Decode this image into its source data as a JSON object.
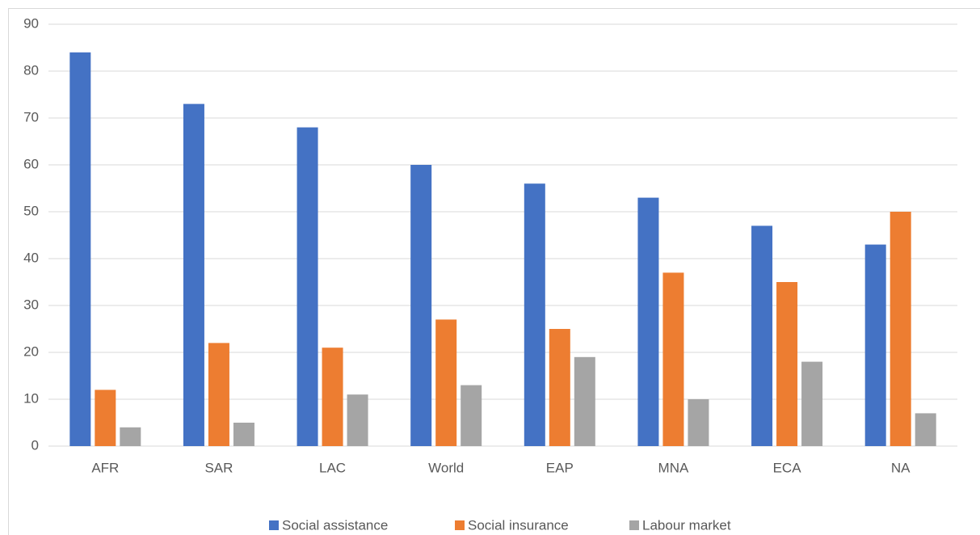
{
  "chart_data": {
    "type": "bar",
    "categories": [
      "AFR",
      "SAR",
      "LAC",
      "World",
      "EAP",
      "MNA",
      "ECA",
      "NA"
    ],
    "series": [
      {
        "name": "Social assistance",
        "color": "#4472c4",
        "values": [
          84,
          73,
          68,
          60,
          56,
          53,
          47,
          43
        ]
      },
      {
        "name": "Social insurance",
        "color": "#ed7d31",
        "values": [
          12,
          22,
          21,
          27,
          25,
          37,
          35,
          50
        ]
      },
      {
        "name": "Labour market",
        "color": "#a5a5a5",
        "values": [
          4,
          5,
          11,
          13,
          19,
          10,
          18,
          7
        ]
      }
    ],
    "ylim": [
      0,
      90
    ],
    "yticks": [
      0,
      10,
      20,
      30,
      40,
      50,
      60,
      70,
      80,
      90
    ],
    "grid": true,
    "legend": "bottom"
  }
}
